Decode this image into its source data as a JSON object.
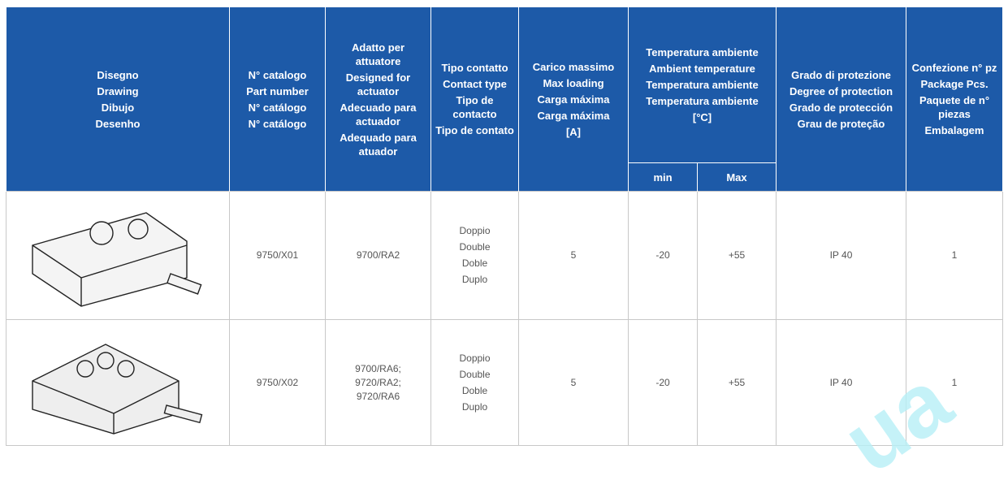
{
  "header": {
    "columns": [
      {
        "lines": [
          "Disegno",
          "Drawing",
          "Dibujo",
          "Desenho"
        ]
      },
      {
        "lines": [
          "N° catalogo",
          "Part number",
          "N° catálogo",
          "N° catálogo"
        ]
      },
      {
        "lines": [
          "Adatto per attuatore",
          "Designed for actuator",
          "Adecuado para actuador",
          "Adequado para atuador"
        ]
      },
      {
        "lines": [
          "Tipo contatto",
          "Contact type",
          "Tipo de contacto",
          "Tipo de contato"
        ]
      },
      {
        "lines": [
          "Carico massimo",
          "Max loading",
          "Carga máxima",
          "Carga máxima",
          "[A]"
        ]
      },
      {
        "lines": [
          "Temperatura ambiente",
          "Ambient temperature",
          "Temperatura ambiente",
          "Temperatura ambiente",
          "[°C]"
        ],
        "sub": [
          "min",
          "Max"
        ]
      },
      {
        "lines": [
          "Grado di protezione",
          "Degree of protection",
          "Grado de protección",
          "Grau de proteção"
        ]
      },
      {
        "lines": [
          "Confezione n° pz",
          "Package Pcs.",
          "Paquete de n° piezas",
          "Embalagem"
        ]
      }
    ]
  },
  "table": {
    "rows": [
      {
        "part": "9750/X01",
        "actuator": [
          "9700/RA2"
        ],
        "contact": [
          "Doppio",
          "Double",
          "Doble",
          "Duplo"
        ],
        "load": "5",
        "min": "-20",
        "max": "+55",
        "protection": "IP 40",
        "package": "1"
      },
      {
        "part": "9750/X02",
        "actuator": [
          "9700/RA6;",
          "9720/RA2;",
          "9720/RA6"
        ],
        "contact": [
          "Doppio",
          "Double",
          "Doble",
          "Duplo"
        ],
        "load": "5",
        "min": "-20",
        "max": "+55",
        "protection": "IP 40",
        "package": "1"
      }
    ]
  },
  "watermark": "ua"
}
